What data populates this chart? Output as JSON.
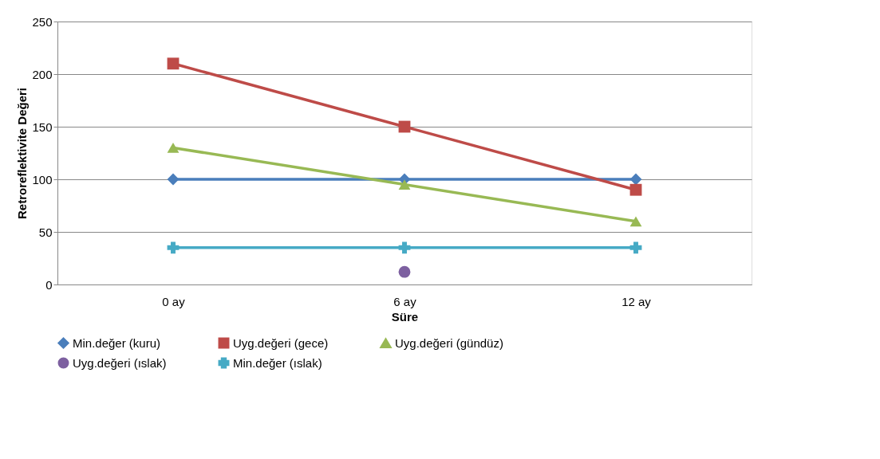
{
  "chart_data": {
    "type": "line",
    "xlabel": "Süre",
    "ylabel": "Retroreflektivite Değeri",
    "categories": [
      "0 ay",
      "6 ay",
      "12 ay"
    ],
    "series": [
      {
        "name": "Min.değer (kuru)",
        "color": "#4a7ebb",
        "marker": "diamond",
        "values": [
          100,
          100,
          100
        ]
      },
      {
        "name": "Uyg.değeri (gece)",
        "color": "#be4b48",
        "marker": "square",
        "values": [
          210,
          150,
          90
        ]
      },
      {
        "name": "Uyg.değeri (gündüz)",
        "color": "#98b954",
        "marker": "triangle",
        "values": [
          130,
          95,
          60
        ]
      },
      {
        "name": "Uyg.değeri (ıslak)",
        "color": "#7d60a0",
        "marker": "circle",
        "values": [
          null,
          12,
          null
        ]
      },
      {
        "name": "Min.değer (ıslak)",
        "color": "#46aac5",
        "marker": "cross",
        "values": [
          35,
          35,
          35
        ]
      }
    ],
    "ylim": [
      0,
      250
    ],
    "yticks": [
      0,
      50,
      100,
      150,
      200,
      250
    ],
    "grid": "y",
    "legend": "bottom"
  }
}
